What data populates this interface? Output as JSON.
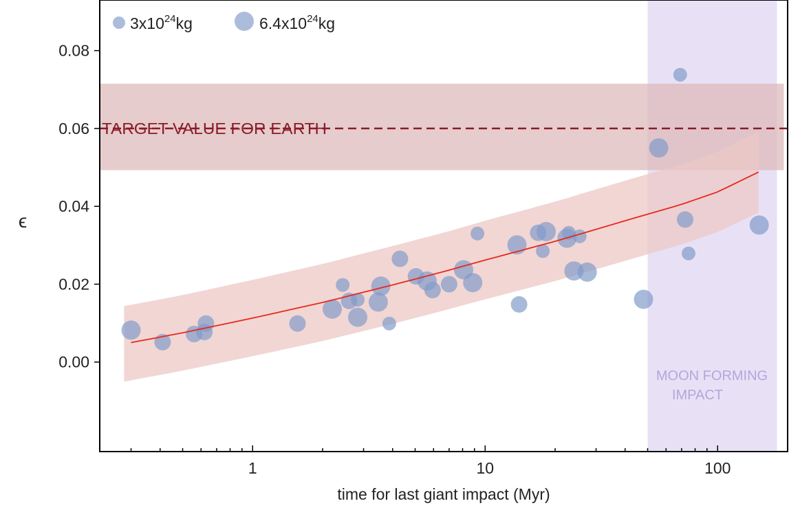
{
  "chart_data": {
    "type": "scatter",
    "xscale": "log",
    "xlim": [
      0.22,
      200
    ],
    "ylim": [
      -0.023,
      0.093
    ],
    "xlabel": "time for last giant impact (Myr)",
    "ylabel": "ϵ",
    "x_ticks": [
      {
        "value": 1,
        "label": "1"
      },
      {
        "value": 10,
        "label": "10"
      },
      {
        "value": 100,
        "label": "100"
      }
    ],
    "y_ticks": [
      {
        "value": 0.0,
        "label": "0.00"
      },
      {
        "value": 0.02,
        "label": "0.02"
      },
      {
        "value": 0.04,
        "label": "0.04"
      },
      {
        "value": 0.06,
        "label": "0.06"
      },
      {
        "value": 0.08,
        "label": "0.08"
      }
    ],
    "legend": {
      "position": "top-left",
      "items": [
        {
          "base": "3x10",
          "sup": "24",
          "unit": "kg",
          "size": "small"
        },
        {
          "base": "6.4x10",
          "sup": "24",
          "unit": "kg",
          "size": "large"
        }
      ]
    },
    "colors": {
      "points": "#7f99c8",
      "fit_line": "#e8281c",
      "fit_band": "#ecc8c6",
      "target_line": "#8b1a28",
      "target_band": "#ddb8b9",
      "moon_region": "#e6def5",
      "moon_text": "#b3a6dc"
    },
    "target": {
      "label": "TARGET VALUE FOR EARTH",
      "value": 0.06,
      "band": [
        0.0493,
        0.0715
      ]
    },
    "moon_forming_region": {
      "label_line1": "MOON FORMING",
      "label_line2": "IMPACT",
      "x_range": [
        50,
        180
      ]
    },
    "fit": {
      "x": [
        0.3,
        0.5,
        1,
        2,
        4,
        7,
        10,
        20,
        40,
        70,
        100,
        150
      ],
      "y": [
        0.005,
        0.0075,
        0.0113,
        0.0153,
        0.0198,
        0.0236,
        0.0262,
        0.031,
        0.0363,
        0.0405,
        0.0437,
        0.0488
      ],
      "band_half_width": [
        0.0097,
        0.0097,
        0.0098,
        0.0099,
        0.01,
        0.01,
        0.0101,
        0.0102,
        0.0103,
        0.0103,
        0.0103,
        0.0104
      ],
      "band_x_range": [
        0.28,
        150
      ]
    },
    "points": [
      {
        "x": 0.3,
        "y": 0.0082,
        "size": "large"
      },
      {
        "x": 0.41,
        "y": 0.0051,
        "size": "mid"
      },
      {
        "x": 0.56,
        "y": 0.0072,
        "size": "mid"
      },
      {
        "x": 0.62,
        "y": 0.0077,
        "size": "mid"
      },
      {
        "x": 0.63,
        "y": 0.0099,
        "size": "mid"
      },
      {
        "x": 1.56,
        "y": 0.0099,
        "size": "mid"
      },
      {
        "x": 2.2,
        "y": 0.0136,
        "size": "large"
      },
      {
        "x": 2.44,
        "y": 0.0198,
        "size": "small"
      },
      {
        "x": 2.6,
        "y": 0.0157,
        "size": "mid"
      },
      {
        "x": 2.83,
        "y": 0.016,
        "size": "small"
      },
      {
        "x": 2.83,
        "y": 0.0115,
        "size": "large"
      },
      {
        "x": 3.47,
        "y": 0.0154,
        "size": "large"
      },
      {
        "x": 3.56,
        "y": 0.0195,
        "size": "large"
      },
      {
        "x": 3.87,
        "y": 0.0099,
        "size": "small"
      },
      {
        "x": 4.3,
        "y": 0.0265,
        "size": "mid"
      },
      {
        "x": 5.04,
        "y": 0.022,
        "size": "mid"
      },
      {
        "x": 5.63,
        "y": 0.0208,
        "size": "large"
      },
      {
        "x": 5.94,
        "y": 0.0185,
        "size": "mid"
      },
      {
        "x": 7.0,
        "y": 0.02,
        "size": "mid"
      },
      {
        "x": 8.08,
        "y": 0.0237,
        "size": "large"
      },
      {
        "x": 8.84,
        "y": 0.0204,
        "size": "large"
      },
      {
        "x": 9.27,
        "y": 0.033,
        "size": "small"
      },
      {
        "x": 13.7,
        "y": 0.0301,
        "size": "large"
      },
      {
        "x": 14.0,
        "y": 0.0148,
        "size": "mid"
      },
      {
        "x": 16.9,
        "y": 0.0332,
        "size": "mid"
      },
      {
        "x": 17.7,
        "y": 0.0285,
        "size": "small"
      },
      {
        "x": 18.3,
        "y": 0.0335,
        "size": "large"
      },
      {
        "x": 22.5,
        "y": 0.0318,
        "size": "large"
      },
      {
        "x": 22.9,
        "y": 0.0332,
        "size": "small"
      },
      {
        "x": 24.1,
        "y": 0.0234,
        "size": "large"
      },
      {
        "x": 25.5,
        "y": 0.0323,
        "size": "small"
      },
      {
        "x": 27.5,
        "y": 0.0231,
        "size": "large"
      },
      {
        "x": 48.0,
        "y": 0.0161,
        "size": "large"
      },
      {
        "x": 55.8,
        "y": 0.055,
        "size": "large"
      },
      {
        "x": 69.0,
        "y": 0.0738,
        "size": "small"
      },
      {
        "x": 72.5,
        "y": 0.0366,
        "size": "mid"
      },
      {
        "x": 75.0,
        "y": 0.0279,
        "size": "small"
      },
      {
        "x": 151.0,
        "y": 0.0352,
        "size": "large"
      }
    ]
  }
}
